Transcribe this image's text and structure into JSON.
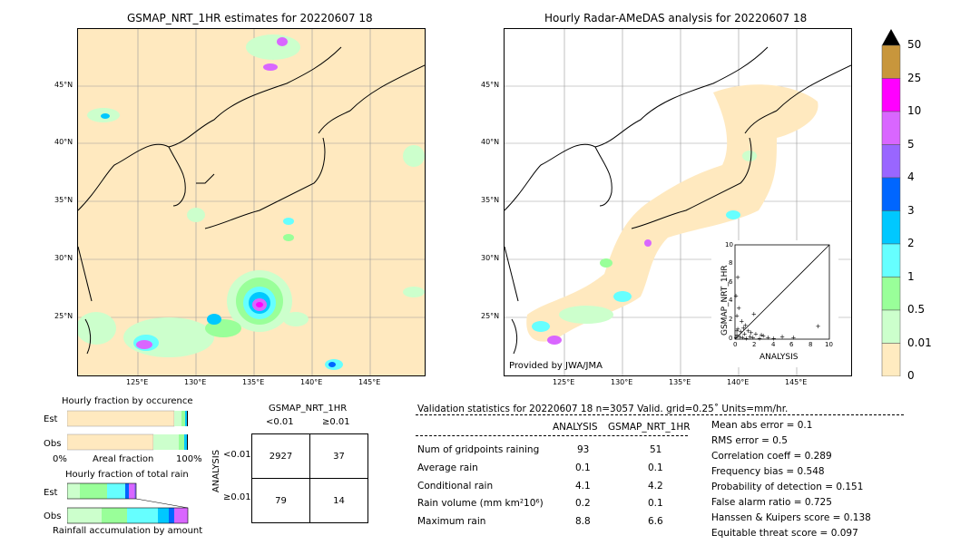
{
  "left_map": {
    "title": "GSMAP_NRT_1HR estimates for 20220607 18",
    "lon_ticks": [
      "125°E",
      "130°E",
      "135°E",
      "140°E",
      "145°E"
    ],
    "lat_ticks": [
      "45°N",
      "40°N",
      "35°N",
      "30°N",
      "25°N"
    ]
  },
  "right_map": {
    "title": "Hourly Radar-AMeDAS analysis for 20220607 18",
    "lon_ticks": [
      "125°E",
      "130°E",
      "135°E",
      "140°E",
      "145°E"
    ],
    "lat_ticks": [
      "45°N",
      "40°N",
      "35°N",
      "30°N",
      "25°N"
    ],
    "credit": "Provided by JWA/JMA"
  },
  "scatter": {
    "xlabel": "ANALYSIS",
    "ylabel": "GSMAP_NRT_1HR",
    "ticks": [
      "0",
      "2",
      "4",
      "6",
      "8",
      "10"
    ],
    "points": [
      [
        0.1,
        0.2
      ],
      [
        0.2,
        0.5
      ],
      [
        0.3,
        1.1
      ],
      [
        0.5,
        0.3
      ],
      [
        0.6,
        0.8
      ],
      [
        0.8,
        0.2
      ],
      [
        1.0,
        0.6
      ],
      [
        1.2,
        0.1
      ],
      [
        1.4,
        0.9
      ],
      [
        1.6,
        0.3
      ],
      [
        1.9,
        0.2
      ],
      [
        2.2,
        0.6
      ],
      [
        2.6,
        0.1
      ],
      [
        3.0,
        0.4
      ],
      [
        3.5,
        0.2
      ],
      [
        4.1,
        0.1
      ],
      [
        5.0,
        0.3
      ],
      [
        6.2,
        0.2
      ],
      [
        8.8,
        1.4
      ],
      [
        0.2,
        2.5
      ],
      [
        0.1,
        4.6
      ],
      [
        0.3,
        6.6
      ],
      [
        0.4,
        3.3
      ],
      [
        0.7,
        1.9
      ],
      [
        1.1,
        1.5
      ],
      [
        2.0,
        2.7
      ],
      [
        0.2,
        0.9
      ],
      [
        0.9,
        1.2
      ],
      [
        1.7,
        0.7
      ],
      [
        2.8,
        0.5
      ]
    ]
  },
  "colorbar": {
    "labels": [
      "50",
      "25",
      "10",
      "5",
      "4",
      "3",
      "2",
      "1",
      "0.5",
      "0.01",
      "0"
    ],
    "colors": [
      "#c8963c",
      "#ff00ff",
      "#d966ff",
      "#9966ff",
      "#0066ff",
      "#00c8ff",
      "#66ffff",
      "#99ff99",
      "#ccffcc",
      "#ffebc0"
    ]
  },
  "occurrence": {
    "title": "Hourly fraction by occurence",
    "row_labels": [
      "Est",
      "Obs"
    ],
    "axis_left": "0%",
    "axis_mid": "Areal fraction",
    "axis_right": "100%"
  },
  "total_rain": {
    "title": "Hourly fraction of total rain",
    "row_labels": [
      "Est",
      "Obs"
    ],
    "axis_label": "Rainfall accumulation by amount"
  },
  "contingency": {
    "header": "GSMAP_NRT_1HR",
    "col_labels": [
      "<0.01",
      "≥0.01"
    ],
    "row_axis": "ANALYSIS",
    "row_labels": [
      "<0.01",
      "≥0.01"
    ],
    "cells": [
      [
        "2927",
        "37"
      ],
      [
        "79",
        "14"
      ]
    ]
  },
  "validation": {
    "header": "Validation statistics for 20220607 18  n=3057 Valid. grid=0.25˚ Units=mm/hr.",
    "col_headers": [
      "ANALYSIS",
      "GSMAP_NRT_1HR"
    ],
    "rows": [
      {
        "label": "Num of gridpoints raining",
        "a": "93",
        "b": "51"
      },
      {
        "label": "Average rain",
        "a": "0.1",
        "b": "0.1"
      },
      {
        "label": "Conditional rain",
        "a": "4.1",
        "b": "4.2"
      },
      {
        "label": "Rain volume (mm km²10⁶)",
        "a": "0.2",
        "b": "0.1"
      },
      {
        "label": "Maximum rain",
        "a": "8.8",
        "b": "6.6"
      }
    ],
    "scores": [
      "Mean abs error =    0.1",
      "RMS error =    0.5",
      "Correlation coeff =  0.289",
      "Frequency bias =  0.548",
      "Probability of detection =  0.151",
      "False alarm ratio =  0.725",
      "Hanssen & Kuipers score =  0.138",
      "Equitable threat score =  0.097"
    ]
  },
  "chart_data": {
    "type": "table",
    "title": "Validation statistics for 20220607 18",
    "contingency_table": {
      "rows": [
        "<0.01",
        "≥0.01"
      ],
      "cols": [
        "<0.01",
        "≥0.01"
      ],
      "values": [
        [
          2927,
          37
        ],
        [
          79,
          14
        ]
      ]
    },
    "statistics": {
      "n": 3057,
      "grid": "0.25˚",
      "units": "mm/hr",
      "num_raining": [
        93,
        51
      ],
      "average_rain": [
        0.1,
        0.1
      ],
      "conditional_rain": [
        4.1,
        4.2
      ],
      "rain_volume": [
        0.2,
        0.1
      ],
      "maximum_rain": [
        8.8,
        6.6
      ]
    },
    "scores": {
      "mean_abs_error": 0.1,
      "rms_error": 0.5,
      "correlation": 0.289,
      "frequency_bias": 0.548,
      "pod": 0.151,
      "far": 0.725,
      "hk": 0.138,
      "ets": 0.097
    },
    "colorbar_levels": [
      0,
      0.01,
      0.5,
      1,
      2,
      3,
      4,
      5,
      10,
      25,
      50
    ]
  }
}
